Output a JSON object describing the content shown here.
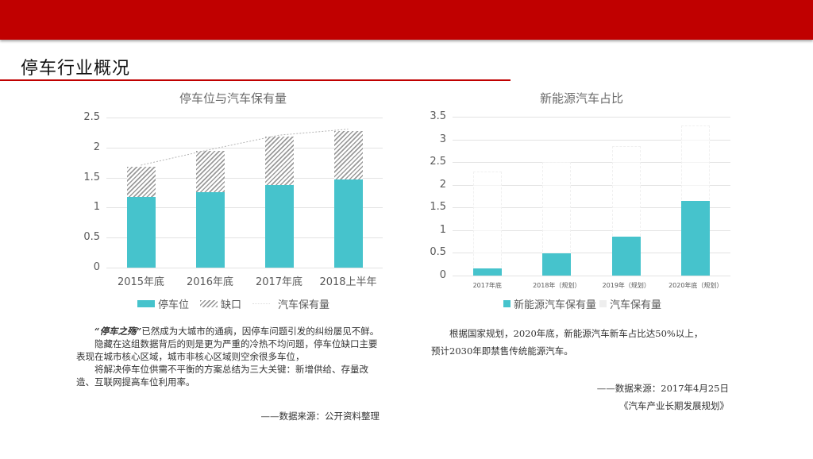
{
  "page": {
    "title": "停车行业概况",
    "accent_color": "#c00000"
  },
  "chart_data": [
    {
      "type": "bar",
      "stacked": true,
      "title": "停车位与汽车保有量",
      "categories": [
        "2015年底",
        "2016年底",
        "2017年底",
        "2018上半年"
      ],
      "series": [
        {
          "name": "停车位",
          "values": [
            1.18,
            1.26,
            1.37,
            1.47
          ],
          "color": "#46c3cc",
          "style": "solid"
        },
        {
          "name": "缺口",
          "values": [
            0.5,
            0.68,
            0.81,
            0.81
          ],
          "color": "#9a9a9a",
          "style": "hatched"
        },
        {
          "name": "汽车保有量",
          "values": [
            1.68,
            1.94,
            2.18,
            2.28
          ],
          "style": "dotted-line"
        }
      ],
      "yticks": [
        "0",
        "0.5",
        "1",
        "1.5",
        "2",
        "2.5"
      ],
      "ylim": [
        0,
        2.5
      ],
      "xlabel": "",
      "ylabel": "",
      "grid": true,
      "legend_position": "bottom"
    },
    {
      "type": "bar",
      "title": "新能源汽车占比",
      "categories": [
        "2017年底",
        "2018年（规划）",
        "2019年（规划）",
        "2020年底（规划）"
      ],
      "series": [
        {
          "name": "新能源汽车保有量",
          "values": [
            0.15,
            0.49,
            0.85,
            1.65
          ],
          "color": "#46c3cc"
        },
        {
          "name": "汽车保有量",
          "values": [
            2.3,
            2.5,
            2.85,
            3.3
          ],
          "color": "#f5f5f5",
          "style": "ghost"
        }
      ],
      "yticks": [
        "0",
        "0.5",
        "1",
        "1.5",
        "2",
        "2.5",
        "3",
        "3.5"
      ],
      "ylim": [
        0,
        3.5
      ],
      "xlabel": "",
      "ylabel": "",
      "grid": true,
      "legend_position": "bottom"
    }
  ],
  "left_text": {
    "lead_bold": "“停车之殇”",
    "para1_rest": "已然成为大城市的通病，因停车问题引发的纠纷屡见不鲜。",
    "para2": "隐藏在这组数据背后的则是更为严重的冷热不均问题，停车位缺口主要表现在城市核心区域，城市非核心区域则空余很多车位，",
    "para3": "将解决停车位供需不平衡的方案总结为三大关键：新增供给、存量改造、互联网提高车位利用率。",
    "source": "——数据来源：公开资料整理"
  },
  "right_text": {
    "para1": "根据国家规划，2020年底，新能源汽车新车占比达50%以上，",
    "para1_cont": "预计2030年即禁售传统能源汽车。",
    "source_line1": "——数据来源：2017年4月25日",
    "source_line2": "《汽车产业长期发展规划》"
  }
}
